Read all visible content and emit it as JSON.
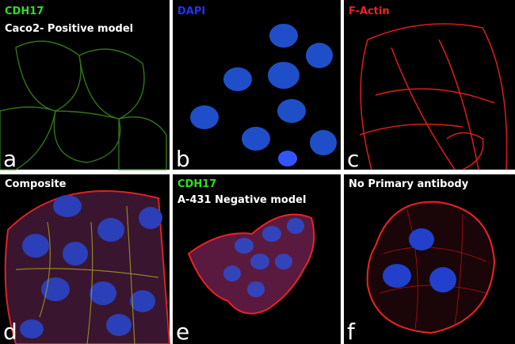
{
  "panels": [
    {
      "labels": [
        "CDH17",
        "Caco2- Positive model"
      ],
      "letter": "a"
    },
    {
      "labels": [
        "DAPI"
      ],
      "letter": "b"
    },
    {
      "labels": [
        "F-Actin"
      ],
      "letter": "c"
    },
    {
      "labels": [
        "Composite"
      ],
      "letter": "d"
    },
    {
      "labels": [
        "CDH17",
        "A-431 Negative model"
      ],
      "letter": "e"
    },
    {
      "labels": [
        "No Primary antibody"
      ],
      "letter": "f"
    }
  ]
}
